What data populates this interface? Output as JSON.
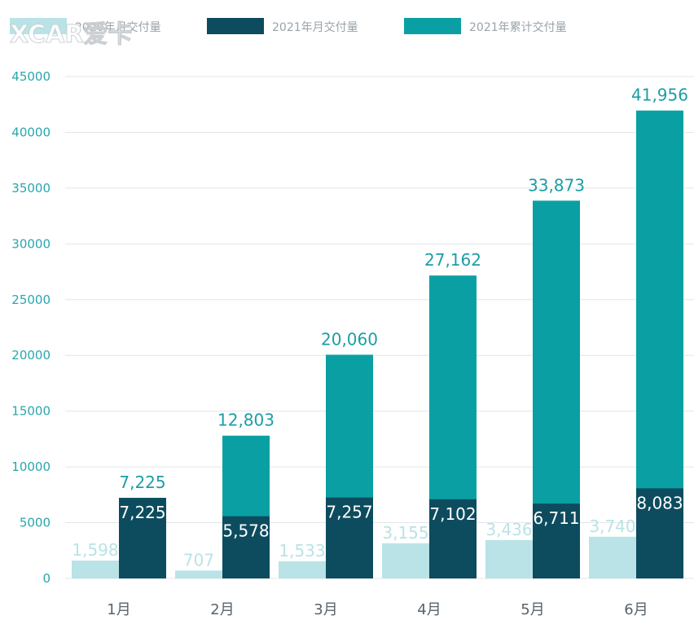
{
  "chart_data": {
    "type": "bar",
    "categories": [
      "1月",
      "2月",
      "3月",
      "4月",
      "5月",
      "6月"
    ],
    "series": [
      {
        "name": "2020年月交付量",
        "color": "#b9e3e6",
        "values": [
          1598,
          707,
          1533,
          3155,
          3436,
          3740
        ],
        "labels": [
          "1,598",
          "707",
          "1,533",
          "3,155",
          "3,436",
          "3,740"
        ]
      },
      {
        "name": "2021年月交付量",
        "color": "#0d4c5e",
        "values": [
          7225,
          5578,
          7257,
          7102,
          6711,
          8083
        ],
        "labels": [
          "7,225",
          "5,578",
          "7,257",
          "7,102",
          "6,711",
          "8,083"
        ]
      },
      {
        "name": "2021年累计交付量",
        "color": "#0aa0a3",
        "values": [
          7225,
          12803,
          20060,
          27162,
          33873,
          41956
        ],
        "labels": [
          "7,225",
          "12,803",
          "20,060",
          "27,162",
          "33,873",
          "41,956"
        ]
      }
    ],
    "ylim": [
      0,
      45000
    ],
    "yticks": [
      "0",
      "5000",
      "10000",
      "15000",
      "20000",
      "25000",
      "30000",
      "35000",
      "40000",
      "45000"
    ],
    "grid": true,
    "legend_position": "top"
  },
  "watermark": "XCAR爱卡"
}
